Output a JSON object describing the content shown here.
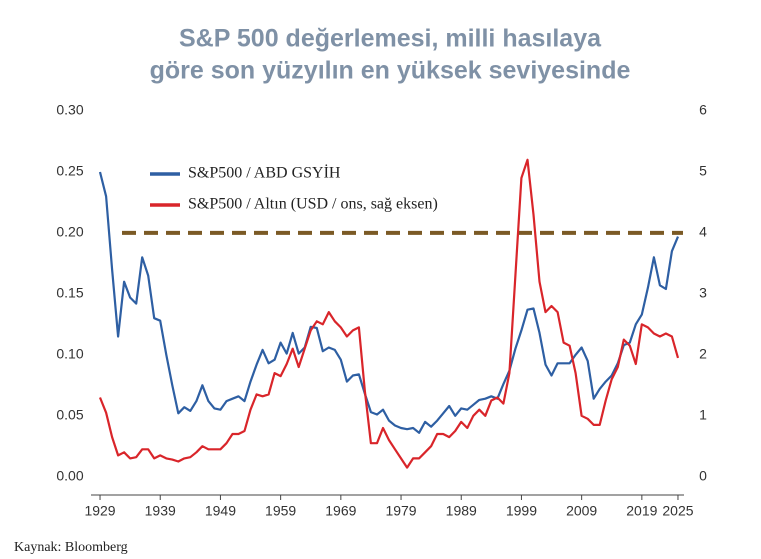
{
  "chart_data": {
    "type": "line",
    "title_lines": [
      "S&P 500 değerlemesi, milli hasılaya",
      "göre son yüzyılın en yüksek seviyesinde"
    ],
    "source": "Kaynak: Bloomberg",
    "x": [
      1929,
      1930,
      1931,
      1932,
      1933,
      1934,
      1935,
      1936,
      1937,
      1938,
      1939,
      1940,
      1941,
      1942,
      1943,
      1944,
      1945,
      1946,
      1947,
      1948,
      1949,
      1950,
      1951,
      1952,
      1953,
      1954,
      1955,
      1956,
      1957,
      1958,
      1959,
      1960,
      1961,
      1962,
      1963,
      1964,
      1965,
      1966,
      1967,
      1968,
      1969,
      1970,
      1971,
      1972,
      1973,
      1974,
      1975,
      1976,
      1977,
      1978,
      1979,
      1980,
      1981,
      1982,
      1983,
      1984,
      1985,
      1986,
      1987,
      1988,
      1989,
      1990,
      1991,
      1992,
      1993,
      1994,
      1995,
      1996,
      1997,
      1998,
      1999,
      2000,
      2001,
      2002,
      2003,
      2004,
      2005,
      2006,
      2007,
      2008,
      2009,
      2010,
      2011,
      2012,
      2013,
      2014,
      2015,
      2016,
      2017,
      2018,
      2019,
      2020,
      2021,
      2022,
      2023,
      2024,
      2025
    ],
    "xlim": [
      1927.5,
      2026.5
    ],
    "xticks": [
      1929,
      1939,
      1949,
      1959,
      1969,
      1979,
      1989,
      1999,
      2009,
      2019,
      2025
    ],
    "ylim": [
      -0.015,
      0.3
    ],
    "yticks": [
      {
        "value": 0,
        "label": "0.00"
      },
      0.05,
      {
        "value": 0.1,
        "label": "0.10"
      },
      0.15,
      {
        "value": 0.2,
        "label": "0.20"
      },
      0.25,
      {
        "value": 0.3,
        "label": "0.30"
      }
    ],
    "y2lim": [
      -0.3,
      6
    ],
    "y2ticks": [
      0,
      1,
      2,
      3,
      4,
      5,
      6
    ],
    "legend": "top-left",
    "reference_line": {
      "value": 0.2,
      "color": "#7b5a25"
    },
    "series": [
      {
        "name": "S&P500 / ABD GSYİH",
        "color": "#2e5fa3",
        "values": [
          0.25,
          0.23,
          0.17,
          0.115,
          0.16,
          0.147,
          0.142,
          0.18,
          0.165,
          0.13,
          0.128,
          0.1,
          0.075,
          0.052,
          0.057,
          0.054,
          0.062,
          0.075,
          0.062,
          0.056,
          0.055,
          0.062,
          0.064,
          0.066,
          0.062,
          0.078,
          0.092,
          0.104,
          0.093,
          0.096,
          0.11,
          0.101,
          0.118,
          0.101,
          0.106,
          0.123,
          0.122,
          0.103,
          0.106,
          0.104,
          0.096,
          0.078,
          0.083,
          0.084,
          0.068,
          0.053,
          0.051,
          0.055,
          0.046,
          0.042,
          0.04,
          0.039,
          0.04,
          0.036,
          0.045,
          0.041,
          0.046,
          0.052,
          0.058,
          0.05,
          0.056,
          0.055,
          0.059,
          0.063,
          0.064,
          0.066,
          0.064,
          0.076,
          0.087,
          0.105,
          0.12,
          0.137,
          0.138,
          0.118,
          0.092,
          0.083,
          0.093,
          0.093,
          0.093,
          0.1,
          0.106,
          0.095,
          0.064,
          0.072,
          0.078,
          0.083,
          0.093,
          0.108,
          0.11,
          0.125,
          0.133,
          0.155,
          0.18,
          0.157,
          0.154,
          0.185,
          0.197
        ]
      },
      {
        "name": "S&P500 / Altın (USD / ons, sağ eksen)",
        "color": "#d9252a",
        "axis": "y2",
        "values": [
          1.3,
          1.05,
          0.65,
          0.35,
          0.4,
          0.3,
          0.32,
          0.45,
          0.45,
          0.3,
          0.35,
          0.3,
          0.28,
          0.25,
          0.3,
          0.32,
          0.4,
          0.5,
          0.45,
          0.45,
          0.45,
          0.55,
          0.7,
          0.7,
          0.75,
          1.1,
          1.35,
          1.32,
          1.35,
          1.7,
          1.65,
          1.85,
          2.1,
          1.8,
          2.1,
          2.4,
          2.55,
          2.5,
          2.7,
          2.55,
          2.45,
          2.3,
          2.4,
          2.45,
          1.4,
          0.55,
          0.55,
          0.8,
          0.6,
          0.45,
          0.3,
          0.15,
          0.3,
          0.3,
          0.4,
          0.5,
          0.7,
          0.7,
          0.65,
          0.75,
          0.9,
          0.8,
          1.0,
          1.1,
          1.0,
          1.25,
          1.3,
          1.2,
          1.7,
          3.3,
          4.9,
          5.2,
          4.3,
          3.2,
          2.7,
          2.8,
          2.7,
          2.2,
          2.15,
          1.7,
          1.0,
          0.95,
          0.85,
          0.85,
          1.25,
          1.6,
          1.8,
          2.25,
          2.15,
          1.85,
          2.5,
          2.45,
          2.35,
          2.3,
          2.35,
          2.3,
          1.95
        ]
      }
    ]
  }
}
